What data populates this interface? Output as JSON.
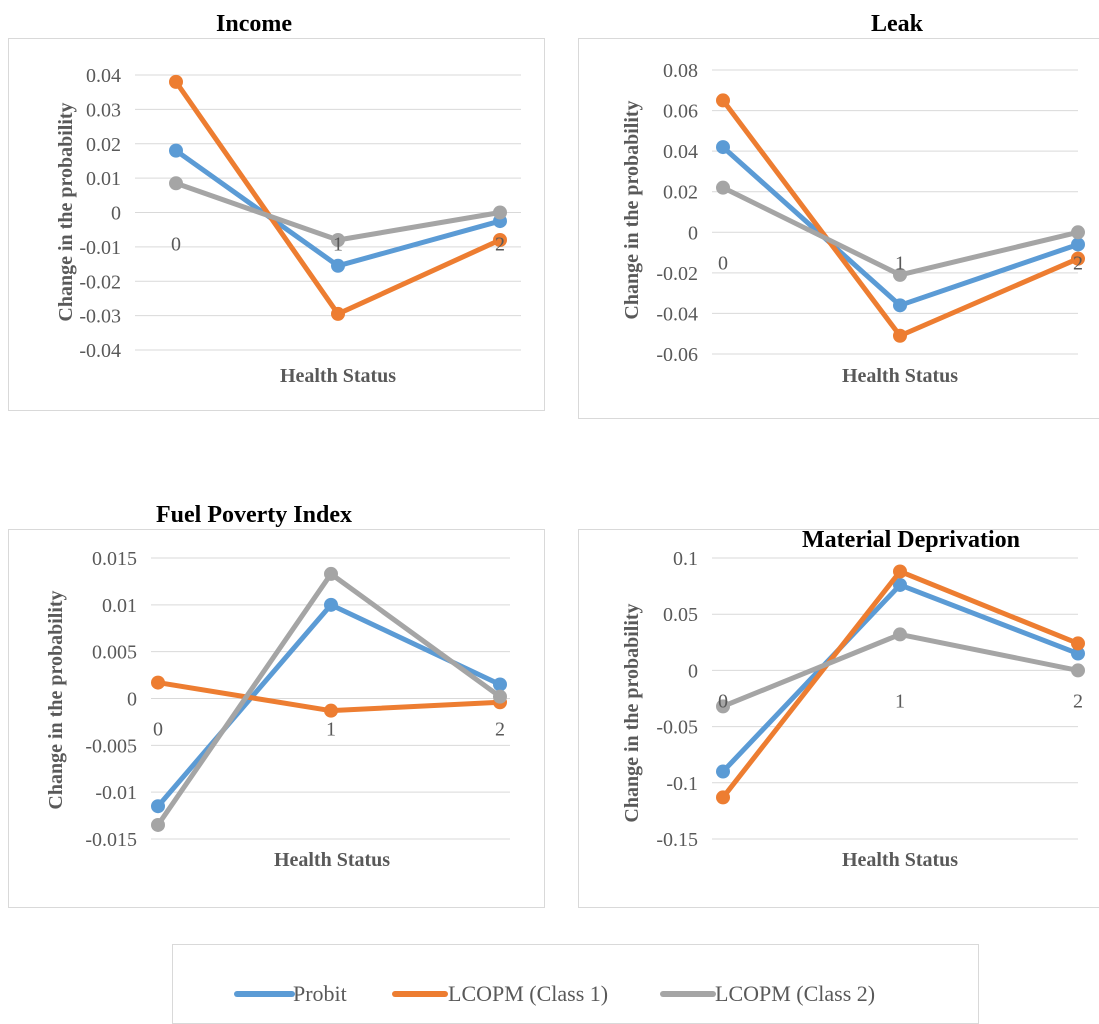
{
  "legend": {
    "items": [
      {
        "name": "Probit",
        "color": "#5b9bd5"
      },
      {
        "name": "LCOPM (Class 1)",
        "color": "#ed7d31"
      },
      {
        "name": "LCOPM (Class 2)",
        "color": "#a5a5a5"
      }
    ]
  },
  "chart_data": [
    {
      "type": "line",
      "title": "Income",
      "xlabel": "Health Status",
      "ylabel": "Change in the probability",
      "categories": [
        "0",
        "1",
        "2"
      ],
      "yticks": [
        "0.04",
        "0.03",
        "0.02",
        "0.01",
        "0",
        "-0.01",
        "-0.02",
        "-0.03",
        "-0.04"
      ],
      "ylim": [
        -0.04,
        0.04
      ],
      "grid": true,
      "series": [
        {
          "name": "Probit",
          "color": "#5b9bd5",
          "values": [
            0.018,
            -0.0155,
            -0.0025
          ]
        },
        {
          "name": "LCOPM (Class 1)",
          "color": "#ed7d31",
          "values": [
            0.038,
            -0.0295,
            -0.008
          ]
        },
        {
          "name": "LCOPM (Class 2)",
          "color": "#a5a5a5",
          "values": [
            0.0085,
            -0.008,
            0.0
          ]
        }
      ]
    },
    {
      "type": "line",
      "title": "Leak",
      "xlabel": "Health Status",
      "ylabel": "Change in the probability",
      "categories": [
        "0",
        "1",
        "2"
      ],
      "yticks": [
        "0.08",
        "0.06",
        "0.04",
        "0.02",
        "0",
        "-0.02",
        "-0.04",
        "-0.06"
      ],
      "ylim": [
        -0.06,
        0.08
      ],
      "grid": true,
      "series": [
        {
          "name": "Probit",
          "color": "#5b9bd5",
          "values": [
            0.042,
            -0.036,
            -0.006
          ]
        },
        {
          "name": "LCOPM (Class 1)",
          "color": "#ed7d31",
          "values": [
            0.065,
            -0.051,
            -0.013
          ]
        },
        {
          "name": "LCOPM (Class 2)",
          "color": "#a5a5a5",
          "values": [
            0.022,
            -0.021,
            0.0
          ]
        }
      ]
    },
    {
      "type": "line",
      "title": "Fuel Poverty Index",
      "xlabel": "Health Status",
      "ylabel": "Change in the probability",
      "categories": [
        "0",
        "1",
        "2"
      ],
      "yticks": [
        "0.015",
        "0.01",
        "0.005",
        "0",
        "-0.005",
        "-0.01",
        "-0.015"
      ],
      "ylim": [
        -0.015,
        0.015
      ],
      "grid": true,
      "series": [
        {
          "name": "Probit",
          "color": "#5b9bd5",
          "values": [
            -0.0115,
            0.01,
            0.0015
          ]
        },
        {
          "name": "LCOPM (Class 1)",
          "color": "#ed7d31",
          "values": [
            0.0017,
            -0.0013,
            -0.0004
          ]
        },
        {
          "name": "LCOPM (Class 2)",
          "color": "#a5a5a5",
          "values": [
            -0.0135,
            0.0133,
            0.0002
          ]
        }
      ]
    },
    {
      "type": "line",
      "title": "Material Deprivation",
      "xlabel": "Health Status",
      "ylabel": "Change in the probability",
      "categories": [
        "0",
        "1",
        "2"
      ],
      "yticks": [
        "0.1",
        "0.05",
        "0",
        "-0.05",
        "-0.1",
        "-0.15"
      ],
      "ylim": [
        -0.15,
        0.1
      ],
      "grid": true,
      "series": [
        {
          "name": "Probit",
          "color": "#5b9bd5",
          "values": [
            -0.09,
            0.076,
            0.015
          ]
        },
        {
          "name": "LCOPM (Class 1)",
          "color": "#ed7d31",
          "values": [
            -0.113,
            0.088,
            0.024
          ]
        },
        {
          "name": "LCOPM (Class 2)",
          "color": "#a5a5a5",
          "values": [
            -0.032,
            0.032,
            0.0
          ]
        }
      ]
    }
  ]
}
